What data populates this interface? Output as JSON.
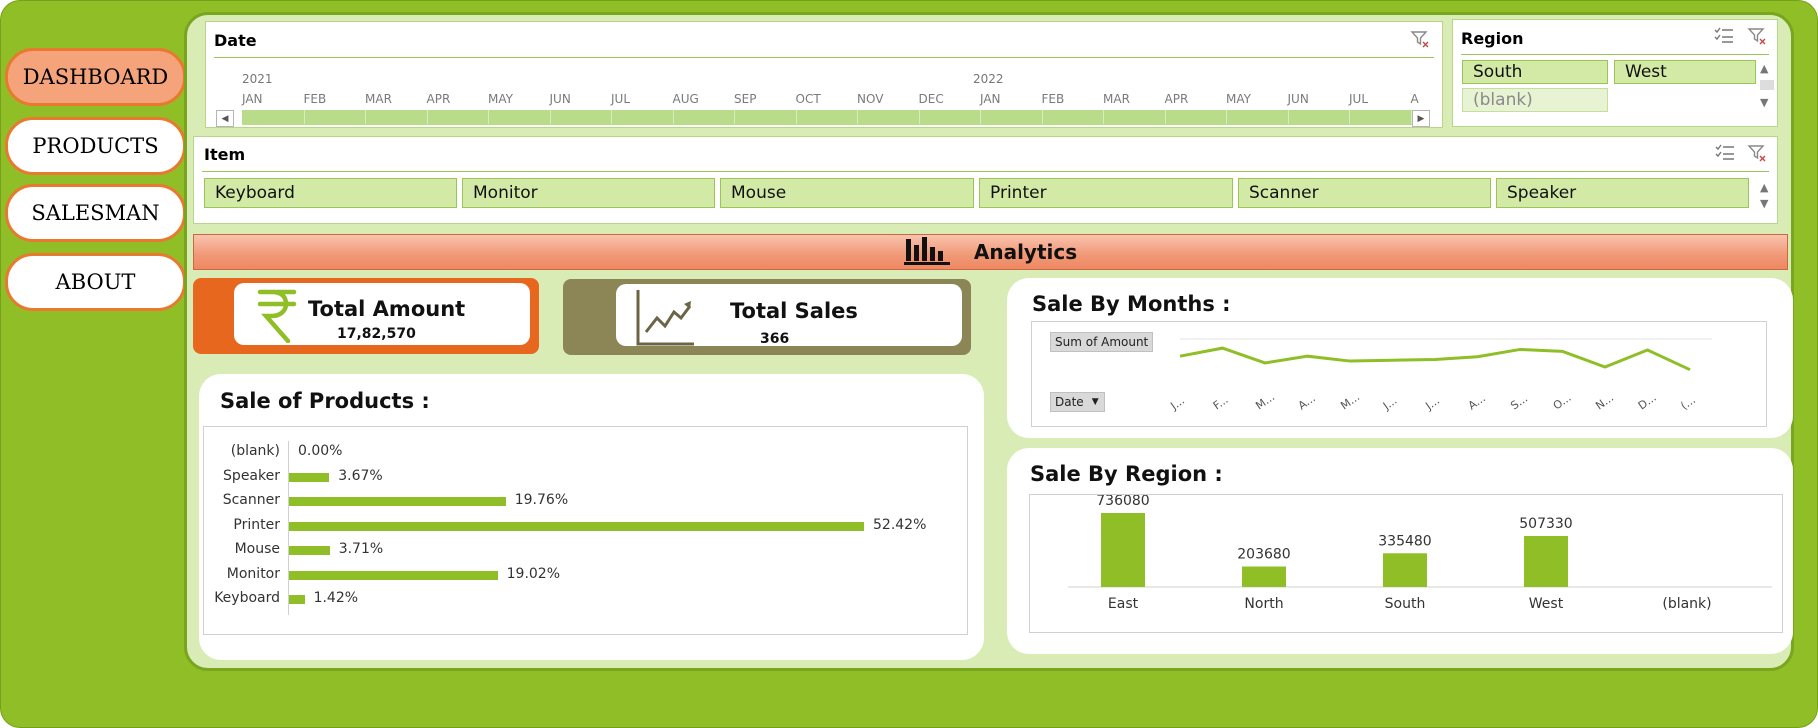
{
  "nav": {
    "dashboard": "DASHBOARD",
    "products": "PRODUCTS",
    "salesman": "SALESMAN",
    "about": "ABOUT"
  },
  "date_slicer": {
    "title": "Date",
    "years": [
      "2021",
      "2022"
    ],
    "months": [
      "JAN",
      "FEB",
      "MAR",
      "APR",
      "MAY",
      "JUN",
      "JUL",
      "AUG",
      "SEP",
      "OCT",
      "NOV",
      "DEC",
      "JAN",
      "FEB",
      "MAR",
      "APR",
      "MAY",
      "JUN",
      "JUL",
      "A"
    ]
  },
  "region_slicer": {
    "title": "Region",
    "items": [
      "South",
      "West",
      "(blank)"
    ]
  },
  "item_slicer": {
    "title": "Item",
    "items": [
      "Keyboard",
      "Monitor",
      "Mouse",
      "Printer",
      "Scanner",
      "Speaker"
    ]
  },
  "analytics": {
    "label": "Analytics"
  },
  "kpi": {
    "amount_label": "Total Amount",
    "amount_value": "17,82,570",
    "sales_label": "Total Sales",
    "sales_value": "366"
  },
  "sale_by_months": {
    "title": "Sale By Months :",
    "values_button": "Sum of Amount",
    "axis_button": "Date"
  },
  "sale_of_products": {
    "title": "Sale of Products :"
  },
  "sale_by_region": {
    "title": "Sale By Region :"
  },
  "colors": {
    "accent_green": "#8fbe26",
    "accent_orange": "#e8792f",
    "olive": "#8c8657"
  },
  "chart_data": [
    {
      "type": "line",
      "name": "sale_by_months",
      "categories": [
        "J...",
        "F...",
        "M...",
        "A...",
        "M...",
        "J...",
        "J...",
        "A...",
        "S...",
        "O...",
        "N...",
        "D...",
        "(..."
      ],
      "values": [
        140000,
        170000,
        115000,
        140000,
        122000,
        125000,
        128000,
        138000,
        165000,
        158000,
        100000,
        163000,
        90000
      ],
      "grid": true
    },
    {
      "type": "bar",
      "orientation": "horizontal",
      "name": "sale_of_products",
      "categories": [
        "(blank)",
        "Speaker",
        "Scanner",
        "Printer",
        "Mouse",
        "Monitor",
        "Keyboard"
      ],
      "values": [
        0.0,
        3.67,
        19.76,
        52.42,
        3.71,
        19.02,
        1.42
      ],
      "labels": [
        "0.00%",
        "3.67%",
        "19.76%",
        "52.42%",
        "3.71%",
        "19.02%",
        "1.42%"
      ]
    },
    {
      "type": "bar",
      "name": "sale_by_region",
      "categories": [
        "East",
        "North",
        "South",
        "West",
        "(blank)"
      ],
      "values": [
        736080,
        203680,
        335480,
        507330,
        null
      ],
      "labels": [
        "736080",
        "203680",
        "335480",
        "507330",
        ""
      ]
    }
  ]
}
